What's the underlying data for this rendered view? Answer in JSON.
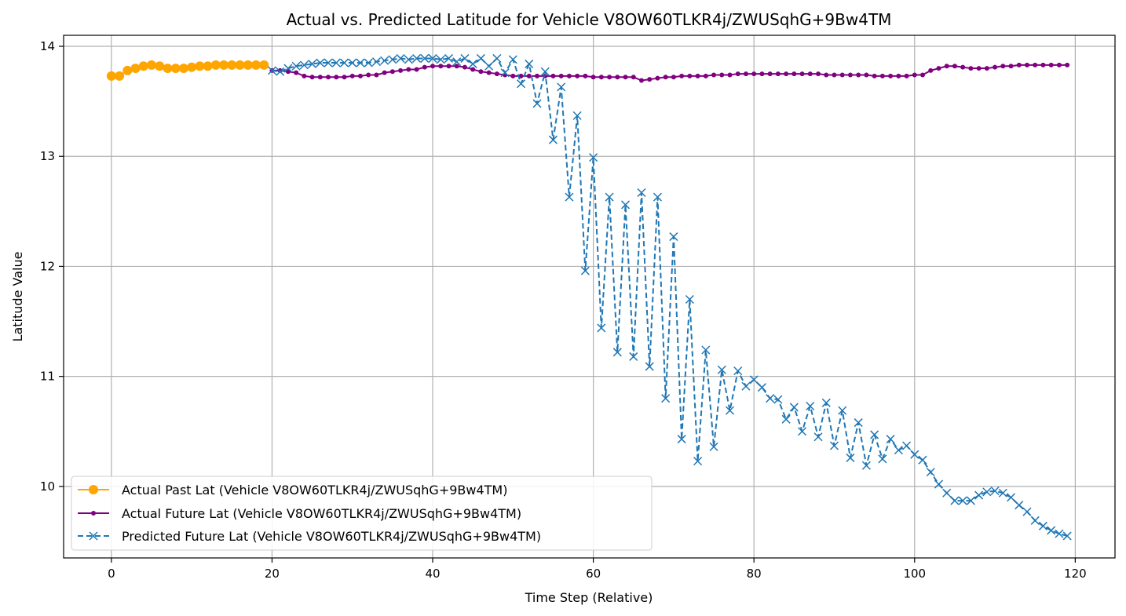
{
  "chart_data": {
    "type": "line",
    "title": "Actual vs. Predicted Latitude for Vehicle V8OW60TLKR4j/ZWUSqhG+9Bw4TM",
    "xlabel": "Time Step (Relative)",
    "ylabel": "Latitude Value",
    "xlim": [
      -5.95,
      124.95
    ],
    "ylim": [
      9.35,
      14.1
    ],
    "xticks": [
      0,
      20,
      40,
      60,
      80,
      100,
      120
    ],
    "yticks": [
      10,
      11,
      12,
      13,
      14
    ],
    "grid": true,
    "legend_position": "lower-left",
    "colors": {
      "actual_past": "#ffa500",
      "actual_future": "#800080",
      "predicted_future": "#1f77b4",
      "grid": "#b0b0b0"
    },
    "series": [
      {
        "name": "Actual Past Lat (Vehicle V8OW60TLKR4j/ZWUSqhG+9Bw4TM)",
        "style": "solid line, circle markers",
        "x_start": 0,
        "values": [
          13.73,
          13.73,
          13.78,
          13.8,
          13.82,
          13.83,
          13.82,
          13.8,
          13.8,
          13.8,
          13.81,
          13.82,
          13.82,
          13.83,
          13.83,
          13.83,
          13.83,
          13.83,
          13.83,
          13.83
        ]
      },
      {
        "name": "Actual Future Lat (Vehicle V8OW60TLKR4j/ZWUSqhG+9Bw4TM)",
        "style": "solid line, small dot markers",
        "x_start": 20,
        "values": [
          13.78,
          13.78,
          13.77,
          13.76,
          13.73,
          13.72,
          13.72,
          13.72,
          13.72,
          13.72,
          13.73,
          13.73,
          13.74,
          13.74,
          13.76,
          13.77,
          13.78,
          13.79,
          13.79,
          13.81,
          13.82,
          13.82,
          13.82,
          13.82,
          13.81,
          13.79,
          13.77,
          13.76,
          13.75,
          13.74,
          13.73,
          13.73,
          13.73,
          13.73,
          13.73,
          13.73,
          13.73,
          13.73,
          13.73,
          13.73,
          13.72,
          13.72,
          13.72,
          13.72,
          13.72,
          13.72,
          13.69,
          13.7,
          13.71,
          13.72,
          13.72,
          13.73,
          13.73,
          13.73,
          13.73,
          13.74,
          13.74,
          13.74,
          13.75,
          13.75,
          13.75,
          13.75,
          13.75,
          13.75,
          13.75,
          13.75,
          13.75,
          13.75,
          13.75,
          13.74,
          13.74,
          13.74,
          13.74,
          13.74,
          13.74,
          13.73,
          13.73,
          13.73,
          13.73,
          13.73,
          13.74,
          13.74,
          13.78,
          13.8,
          13.82,
          13.82,
          13.81,
          13.8,
          13.8,
          13.8,
          13.81,
          13.82,
          13.82,
          13.83,
          13.83,
          13.83,
          13.83,
          13.83,
          13.83,
          13.83
        ]
      },
      {
        "name": "Predicted Future Lat (Vehicle V8OW60TLKR4j/ZWUSqhG+9Bw4TM)",
        "style": "dashed line, x markers",
        "x_start": 20,
        "values": [
          13.78,
          13.77,
          13.8,
          13.82,
          13.83,
          13.84,
          13.85,
          13.85,
          13.85,
          13.85,
          13.85,
          13.85,
          13.85,
          13.86,
          13.87,
          13.88,
          13.89,
          13.88,
          13.89,
          13.89,
          13.89,
          13.88,
          13.89,
          13.86,
          13.89,
          13.84,
          13.89,
          13.82,
          13.89,
          13.76,
          13.88,
          13.66,
          13.84,
          13.48,
          13.77,
          13.15,
          13.63,
          12.63,
          13.37,
          11.96,
          12.99,
          11.44,
          12.63,
          11.22,
          12.56,
          11.18,
          12.67,
          11.09,
          12.63,
          10.8,
          12.27,
          10.43,
          11.7,
          10.23,
          11.24,
          10.36,
          11.06,
          10.69,
          11.05,
          10.91,
          10.97,
          10.9,
          10.8,
          10.79,
          10.61,
          10.72,
          10.5,
          10.73,
          10.45,
          10.76,
          10.37,
          10.69,
          10.26,
          10.58,
          10.19,
          10.47,
          10.25,
          10.43,
          10.33,
          10.37,
          10.29,
          10.24,
          10.13,
          10.02,
          9.94,
          9.87,
          9.87,
          9.87,
          9.92,
          9.95,
          9.96,
          9.94,
          9.9,
          9.83,
          9.77,
          9.69,
          9.64,
          9.6,
          9.57,
          9.55
        ]
      }
    ]
  }
}
